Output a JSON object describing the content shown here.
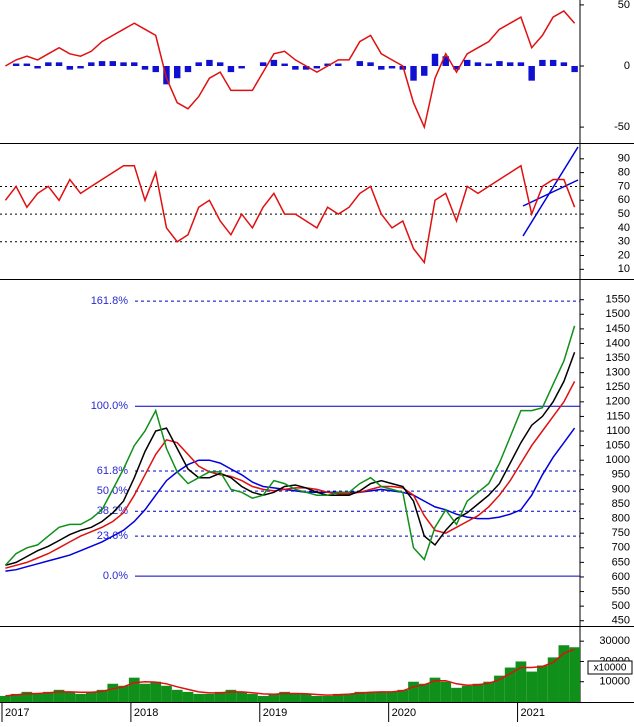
{
  "chart_data": [
    {
      "type": "line",
      "ylim": [
        -63,
        54
      ],
      "yticks": [
        50,
        0,
        -50
      ],
      "series": [
        {
          "type": "bar",
          "color": "#1010d0",
          "values": [
            0,
            2,
            2,
            -2,
            3,
            3,
            -3,
            -2,
            3,
            4,
            4,
            3,
            3,
            -3,
            -5,
            -15,
            -10,
            -5,
            3,
            5,
            3,
            -5,
            -2,
            0,
            3,
            5,
            2,
            -3,
            -3,
            -2,
            2,
            2,
            0,
            4,
            3,
            -3,
            -2,
            -3,
            -12,
            -8,
            10,
            8,
            -3,
            5,
            3,
            2,
            4,
            3,
            3,
            -12,
            5,
            5,
            3,
            -5
          ]
        },
        {
          "type": "line",
          "color": "#e01010",
          "values": [
            0,
            5,
            8,
            5,
            10,
            15,
            10,
            8,
            12,
            20,
            25,
            30,
            35,
            30,
            25,
            -10,
            -30,
            -35,
            -25,
            -10,
            -5,
            -20,
            -20,
            -20,
            -5,
            10,
            12,
            5,
            0,
            -5,
            0,
            5,
            5,
            20,
            25,
            10,
            5,
            0,
            -30,
            -50,
            -10,
            10,
            -5,
            10,
            15,
            20,
            30,
            35,
            40,
            15,
            25,
            40,
            45,
            35
          ]
        }
      ]
    },
    {
      "type": "line",
      "ylim": [
        3,
        100
      ],
      "yticks": [
        10,
        20,
        30,
        40,
        50,
        60,
        70,
        80,
        90
      ],
      "ref_lines": [
        30,
        50,
        70
      ],
      "series": [
        {
          "type": "line",
          "color": "#e01010",
          "values": [
            60,
            70,
            55,
            65,
            70,
            60,
            75,
            65,
            70,
            75,
            80,
            85,
            85,
            60,
            80,
            40,
            30,
            35,
            55,
            60,
            45,
            35,
            50,
            40,
            55,
            65,
            50,
            50,
            45,
            40,
            55,
            50,
            55,
            65,
            70,
            50,
            40,
            45,
            25,
            15,
            60,
            65,
            45,
            70,
            65,
            70,
            75,
            80,
            85,
            50,
            70,
            75,
            75,
            55
          ]
        }
      ]
    },
    {
      "type": "line",
      "ylim": [
        432,
        1614
      ],
      "yticks": [
        450,
        500,
        550,
        600,
        650,
        700,
        750,
        800,
        850,
        900,
        950,
        1000,
        1050,
        1100,
        1150,
        1200,
        1250,
        1300,
        1350,
        1400,
        1450,
        1500,
        1550
      ],
      "levels": [
        {
          "value": 1545,
          "label": "161.8%",
          "dashed": true
        },
        {
          "value": 1185,
          "label": "100.0%",
          "dashed": false
        },
        {
          "value": 963,
          "label": "61.8%",
          "dashed": true
        },
        {
          "value": 894,
          "label": "50.0%",
          "dashed": true
        },
        {
          "value": 825,
          "label": "38.2%",
          "dashed": true
        },
        {
          "value": 740,
          "label": "23.6%",
          "dashed": true
        },
        {
          "value": 603,
          "label": "0.0%",
          "dashed": false
        }
      ],
      "series": [
        {
          "type": "line",
          "color": "#0000e0",
          "values": [
            620,
            625,
            635,
            645,
            655,
            665,
            675,
            690,
            705,
            720,
            740,
            760,
            790,
            830,
            880,
            930,
            960,
            985,
            1000,
            1000,
            990,
            970,
            950,
            925,
            910,
            905,
            900,
            895,
            890,
            890,
            890,
            890,
            890,
            890,
            895,
            900,
            895,
            890,
            880,
            860,
            840,
            830,
            815,
            805,
            800,
            800,
            805,
            815,
            830,
            880,
            950,
            1010,
            1060,
            1110
          ]
        },
        {
          "type": "line",
          "color": "#e01010",
          "values": [
            630,
            640,
            650,
            665,
            680,
            700,
            720,
            740,
            755,
            770,
            790,
            820,
            880,
            950,
            1020,
            1070,
            1060,
            1020,
            980,
            960,
            950,
            945,
            930,
            910,
            900,
            895,
            900,
            905,
            905,
            900,
            890,
            885,
            885,
            890,
            900,
            910,
            910,
            905,
            880,
            810,
            760,
            750,
            770,
            790,
            810,
            840,
            880,
            930,
            990,
            1050,
            1100,
            1150,
            1200,
            1270
          ]
        },
        {
          "type": "line",
          "color": "#000000",
          "values": [
            640,
            650,
            670,
            690,
            705,
            725,
            745,
            760,
            770,
            790,
            820,
            860,
            940,
            1030,
            1100,
            1110,
            1040,
            970,
            940,
            940,
            955,
            940,
            910,
            890,
            880,
            890,
            910,
            915,
            905,
            890,
            880,
            880,
            880,
            895,
            920,
            930,
            920,
            910,
            860,
            740,
            710,
            760,
            800,
            820,
            850,
            880,
            920,
            990,
            1060,
            1120,
            1150,
            1200,
            1270,
            1370
          ]
        },
        {
          "type": "line",
          "color": "#10901a",
          "values": [
            640,
            680,
            700,
            710,
            740,
            770,
            780,
            780,
            800,
            830,
            900,
            970,
            1050,
            1100,
            1170,
            1040,
            960,
            920,
            940,
            960,
            960,
            900,
            890,
            870,
            880,
            930,
            920,
            900,
            890,
            880,
            880,
            890,
            890,
            920,
            940,
            910,
            900,
            890,
            700,
            660,
            770,
            830,
            780,
            860,
            890,
            920,
            990,
            1080,
            1170,
            1170,
            1180,
            1260,
            1340,
            1460
          ]
        }
      ]
    },
    {
      "type": "bar",
      "ylim": [
        0,
        36500
      ],
      "yticks": [
        10000,
        20000,
        30000
      ],
      "unit_label": "x10000",
      "categories": [
        "2017",
        null,
        null,
        null,
        null,
        null,
        null,
        null,
        null,
        null,
        null,
        null,
        "2018",
        null,
        null,
        null,
        null,
        null,
        null,
        null,
        null,
        null,
        null,
        null,
        "2019",
        null,
        null,
        null,
        null,
        null,
        null,
        null,
        null,
        null,
        null,
        null,
        "2020",
        null,
        null,
        null,
        null,
        null,
        null,
        null,
        null,
        null,
        null,
        null,
        "2021",
        null,
        null,
        null,
        null,
        null
      ],
      "series": [
        {
          "type": "bar",
          "color": "#10901a",
          "values": [
            3000,
            4000,
            5000,
            4000,
            5000,
            6000,
            5000,
            4000,
            5000,
            6000,
            9000,
            8000,
            12000,
            9000,
            10000,
            8000,
            6000,
            5000,
            4000,
            4000,
            5000,
            6000,
            5000,
            4000,
            3000,
            4000,
            5000,
            4000,
            4000,
            3000,
            3000,
            4000,
            4000,
            5000,
            5000,
            5000,
            5000,
            6000,
            10000,
            9000,
            12000,
            10000,
            7000,
            8000,
            9000,
            10000,
            13000,
            17000,
            20000,
            15000,
            18000,
            22000,
            28000,
            27000
          ]
        },
        {
          "type": "line",
          "color": "#e01010",
          "values": [
            3000,
            3500,
            4000,
            4200,
            4500,
            5000,
            5000,
            4800,
            4800,
            5200,
            6500,
            7500,
            9500,
            10000,
            9800,
            9000,
            7500,
            6200,
            5000,
            4500,
            4500,
            5000,
            5000,
            4600,
            4000,
            3800,
            4200,
            4200,
            4100,
            3700,
            3400,
            3600,
            3900,
            4400,
            4800,
            5000,
            5000,
            5500,
            7500,
            8500,
            10500,
            10500,
            9000,
            8300,
            8500,
            9200,
            11000,
            14000,
            17000,
            17000,
            17500,
            19500,
            24000,
            26000
          ]
        }
      ]
    }
  ]
}
